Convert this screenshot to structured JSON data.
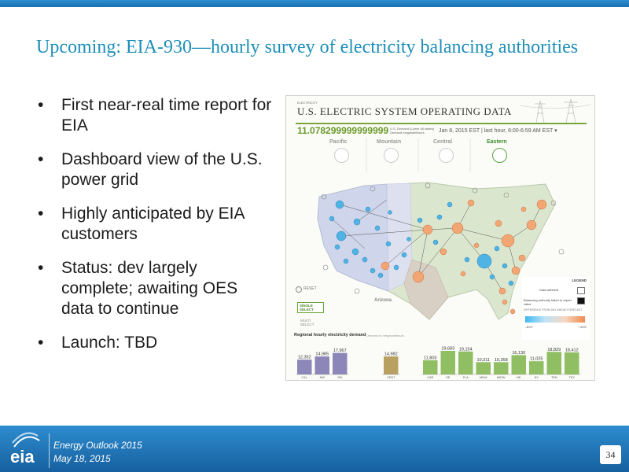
{
  "slide": {
    "title": "Upcoming:  EIA-930—hourly survey of electricity balancing authorities",
    "bullets": [
      "First near-real time report for EIA",
      "Dashboard view of the U.S. power grid",
      "Highly anticipated by EIA customers",
      "Status: dev largely complete; awaiting OES data to continue",
      "Launch: TBD"
    ],
    "page_number": "34"
  },
  "footer": {
    "logo_text": "eia",
    "line1": "Energy  Outlook 2015",
    "line2": "May 18, 2015"
  },
  "dashboard": {
    "supertitle": "ELECTRICITY",
    "title": "U.S. ELECTRIC SYSTEM OPERATING DATA",
    "value": "11.078299999999999",
    "value_sub": "U.S. Demand (Lower 48 states) Demand megawatthours",
    "date": "Jan 8, 2015 EST | last hour, 6:00-6:59 AM EST ▾",
    "timezones": [
      "Pacific",
      "Mountain",
      "Central",
      "Eastern"
    ],
    "active_timezone": "Eastern",
    "region_label": "Arizona",
    "controls": {
      "reset": "RESET",
      "single_select": "SINGLE SELECT",
      "multi_select": "MULTI SELECT"
    },
    "legend": {
      "title": "LEGEND",
      "row1": "Data withheld",
      "row2": "Balancing authority failed to report value",
      "row3": "DIFFERENCE FROM DAY-AHEAD FORECAST",
      "low": "-40%",
      "high": "+40%",
      "gradient_colors": [
        "#3fb8f0",
        "#bfe3f7",
        "#f6d6c0",
        "#f08a4a"
      ]
    },
    "regional_title": "Regional hourly electricity demand",
    "regional_sub": "Demand in megawatthours"
  },
  "chart_data": {
    "type": "bar",
    "title": "Regional hourly electricity demand",
    "categories": [
      "CAL",
      "NW",
      "SW",
      "CENT",
      "CAR",
      "SE",
      "FLA",
      "MIDA",
      "MIDW",
      "NE",
      "NY",
      "TEN",
      "TEX"
    ],
    "groups": [
      {
        "categories": [
          "CAL",
          "NW",
          "SW"
        ],
        "values": [
          12352,
          14985,
          17967
        ]
      },
      {
        "categories": [
          "CENT"
        ],
        "values": [
          14982
        ]
      },
      {
        "categories": [
          "CAR",
          "SE",
          "FLA",
          "MIDA",
          "MIDW",
          "NE",
          "NY",
          "TEN",
          "TEX"
        ],
        "values": [
          11803,
          19683,
          19154,
          10311,
          10268,
          16130,
          11025,
          18829,
          18412
        ]
      }
    ],
    "values": [
      12352,
      14985,
      17967,
      14982,
      11803,
      19683,
      19154,
      10311,
      10268,
      16130,
      11025,
      18829,
      18412
    ],
    "labels": [
      "12,352",
      "14,985",
      "17,967",
      "14,982",
      "11,803",
      "19,683",
      "19,154",
      "10,311",
      "10,268",
      "16,130",
      "11,025",
      "18,829",
      "18,412"
    ],
    "group_colors": [
      "#8d86b8",
      "#b8a060",
      "#8fbf62"
    ]
  }
}
